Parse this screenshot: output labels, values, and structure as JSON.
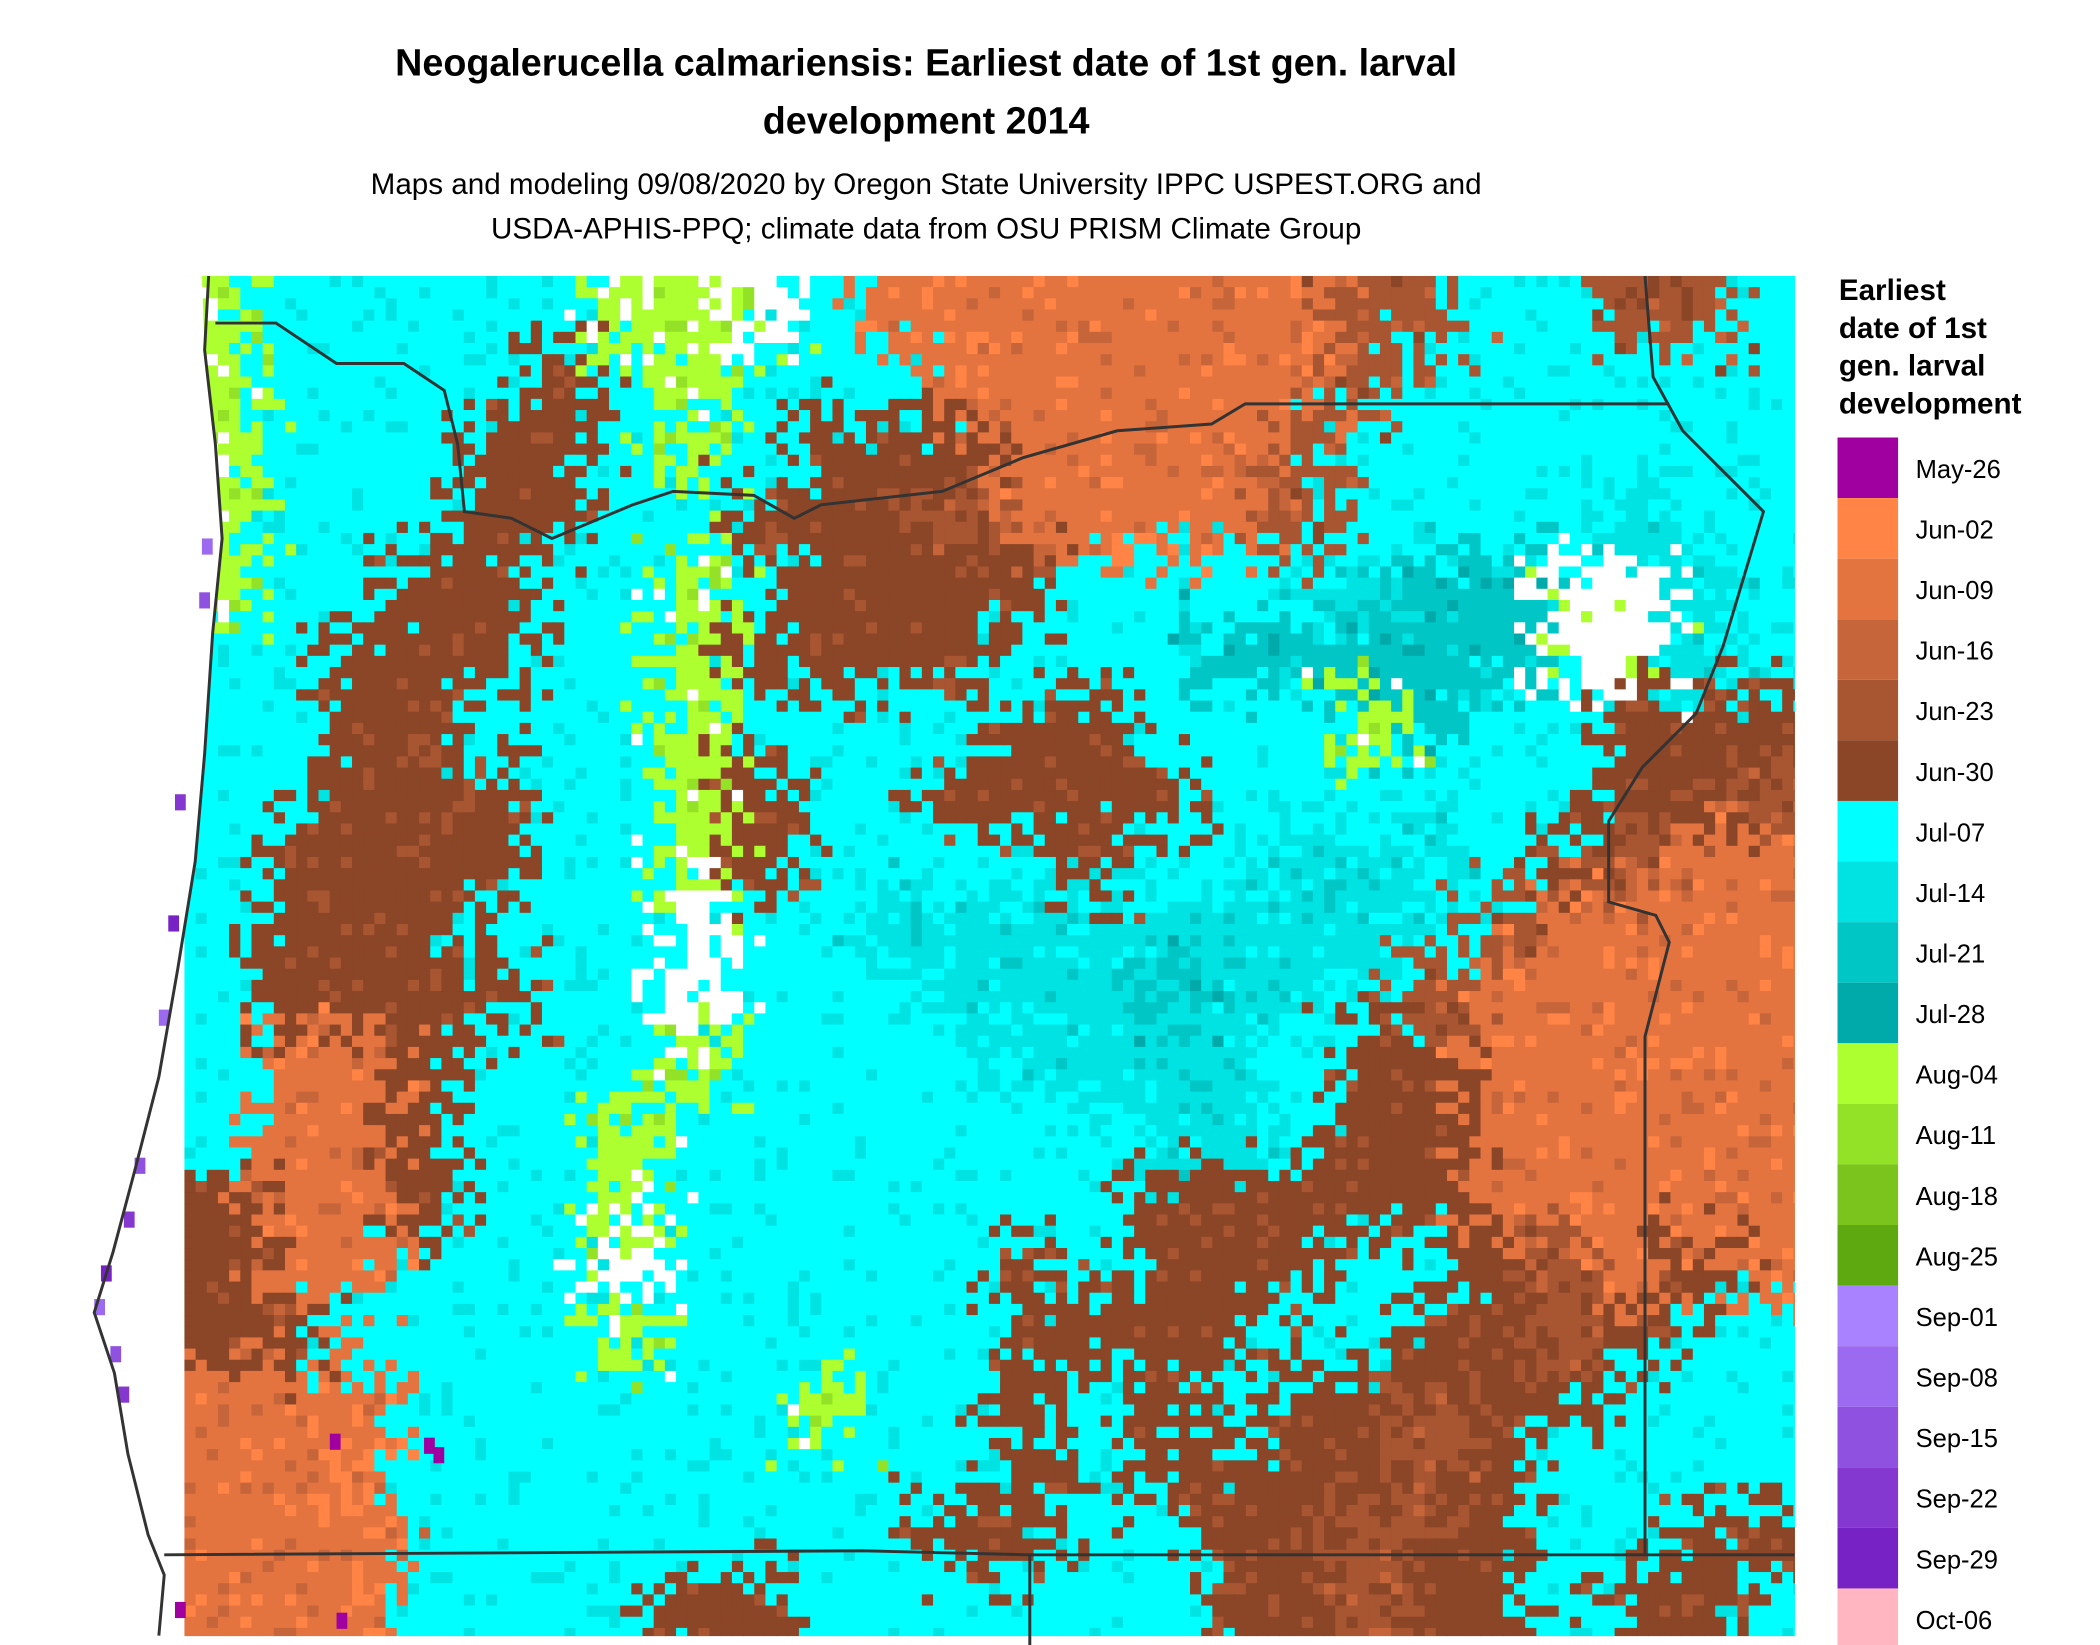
{
  "title": {
    "line1": "Neogalerucella calmariensis: Earliest date of 1st gen. larval",
    "line2": "development 2014"
  },
  "subtitle": {
    "line1": "Maps and modeling 09/08/2020 by Oregon State University IPPC USPEST.ORG and",
    "line2": "USDA-APHIS-PPQ; climate data from OSU PRISM Climate Group"
  },
  "legend": {
    "title_lines": [
      "Earliest",
      "date of 1st",
      "gen. larval",
      "development"
    ],
    "items": [
      {
        "label": "May-26",
        "color": "#A000A0"
      },
      {
        "label": "Jun-02",
        "color": "#FF8445"
      },
      {
        "label": "Jun-09",
        "color": "#E37440"
      },
      {
        "label": "Jun-16",
        "color": "#C6653A"
      },
      {
        "label": "Jun-23",
        "color": "#A85532"
      },
      {
        "label": "Jun-30",
        "color": "#8B4527"
      },
      {
        "label": "Jul-07",
        "color": "#00FFFF"
      },
      {
        "label": "Jul-14",
        "color": "#00E3E3"
      },
      {
        "label": "Jul-21",
        "color": "#00C6C6"
      },
      {
        "label": "Jul-28",
        "color": "#00AAAA"
      },
      {
        "label": "Aug-04",
        "color": "#ADFF2F"
      },
      {
        "label": "Aug-11",
        "color": "#94E227"
      },
      {
        "label": "Aug-18",
        "color": "#7BC41E"
      },
      {
        "label": "Aug-25",
        "color": "#5EA810"
      },
      {
        "label": "Sep-01",
        "color": "#A983FF"
      },
      {
        "label": "Sep-08",
        "color": "#9C6AF0"
      },
      {
        "label": "Sep-15",
        "color": "#8F51E0"
      },
      {
        "label": "Sep-22",
        "color": "#8438D0"
      },
      {
        "label": "Sep-29",
        "color": "#7722C4"
      },
      {
        "label": "Oct-06",
        "color": "#FFB6C1"
      }
    ]
  },
  "map": {
    "boundary_color": "#333333"
  }
}
